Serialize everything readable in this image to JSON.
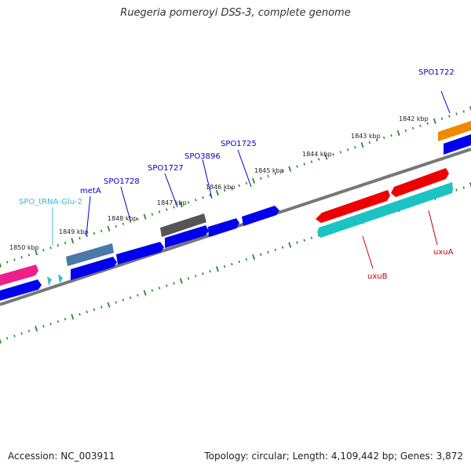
{
  "title": "Ruegeria pomeroyi DSS-3, complete genome",
  "footer": {
    "accession": "Accession: NC_003911",
    "topology": "Topology: circular; Length: 4,109,442 bp; Genes: 3,872"
  },
  "colors": {
    "backbone": "#7a7a7a",
    "tick": "#2a8a2a",
    "blue": "#0000ee",
    "red": "#ee0000",
    "cyan": "#1cc3c3",
    "magenta": "#ee1f8a",
    "orange": "#f08800",
    "grey": "#666666",
    "steel": "#4a78a8",
    "trna": "#33bbdd"
  },
  "tick_labels": [
    "1850 kbp",
    "1849 kbp",
    "1848 kbp",
    "1847 kbp",
    "1846 kbp",
    "1845 kbp",
    "1844 kbp",
    "1843 kbp",
    "1842 kbp"
  ],
  "gene_labels": [
    {
      "text": "SPO1722",
      "color": "#0000cc"
    },
    {
      "text": "SPO1725",
      "color": "#0000cc"
    },
    {
      "text": "SPO3896",
      "color": "#0000cc"
    },
    {
      "text": "SPO1727",
      "color": "#0000cc"
    },
    {
      "text": "SPO1728",
      "color": "#0000cc"
    },
    {
      "text": "metA",
      "color": "#0000cc"
    },
    {
      "text": "SPO_tRNA-Glu-2",
      "color": "#33bbdd"
    },
    {
      "text": "uxuA",
      "color": "#cc0000"
    },
    {
      "text": "uxuB",
      "color": "#cc0000"
    }
  ]
}
